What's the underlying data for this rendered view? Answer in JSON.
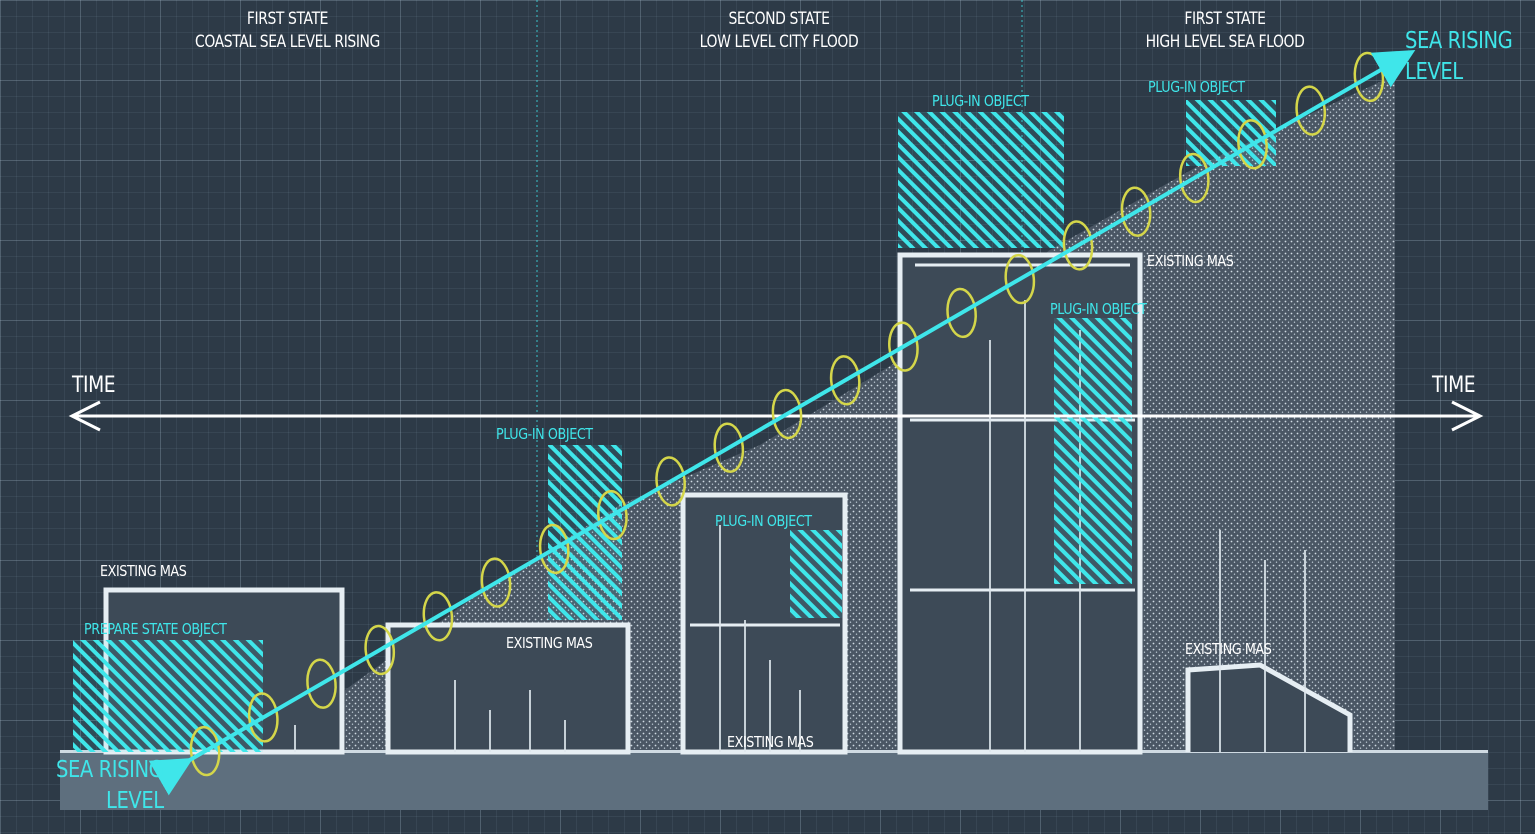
{
  "stages": [
    {
      "name": "FIRST STATE",
      "desc": "COASTAL SEA LEVEL RISING"
    },
    {
      "name": "SECOND STATE",
      "desc": "LOW LEVEL CITY FLOOD"
    },
    {
      "name": "FIRST STATE",
      "desc": "HIGH LEVEL SEA FLOOD"
    }
  ],
  "axis": {
    "left_label": "TIME",
    "right_label": "TIME"
  },
  "sea_level": {
    "start_line1": "SEA RISING",
    "start_line2": "LEVEL",
    "end_line1": "SEA RISING",
    "end_line2": "LEVEL"
  },
  "labels": {
    "existing_mass": "EXISTING MAS",
    "plug_in_object": "PLUG-IN OBJECT",
    "prepare_state_object": "PREPARE STATE OBJECT"
  },
  "colors": {
    "background": "#2d3a47",
    "accent_cyan": "#3fe6ea",
    "spiral_yellow": "#d4d64a",
    "white": "#ffffff"
  }
}
